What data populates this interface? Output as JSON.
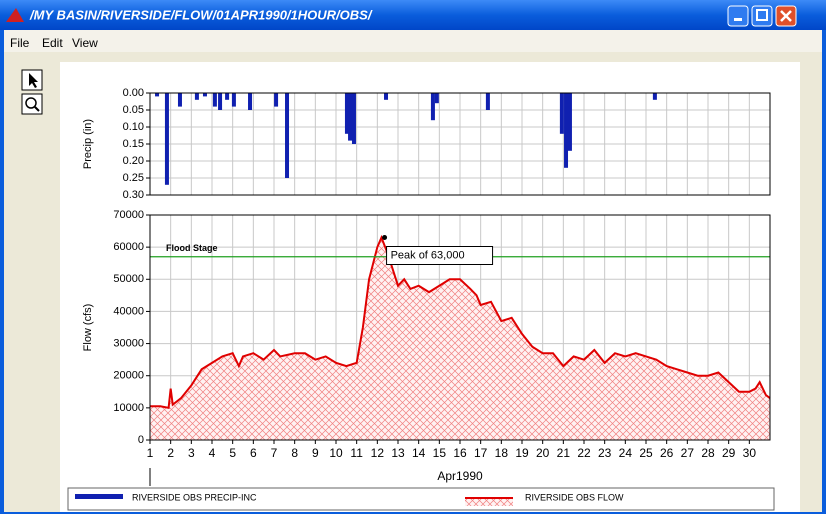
{
  "window": {
    "title": "/MY BASIN/RIVERSIDE/FLOW/01APR1990/1HOUR/OBS/"
  },
  "menu": [
    "File",
    "Edit",
    "View"
  ],
  "chart_data": [
    {
      "type": "bar",
      "ylabel": "Precip (in)",
      "x": [
        1.34,
        1.82,
        2.45,
        3.27,
        3.66,
        4.14,
        4.39,
        4.73,
        5.06,
        5.84,
        7.1,
        7.63,
        10.53,
        10.68,
        10.87,
        12.42,
        14.69,
        14.88,
        17.35,
        20.93,
        21.13,
        21.32,
        25.43
      ],
      "series": [
        {
          "name": "RIVERSIDE OBS PRECIP-INC",
          "color": "#1020b0",
          "values": [
            0.01,
            0.27,
            0.04,
            0.02,
            0.01,
            0.04,
            0.05,
            0.02,
            0.04,
            0.05,
            0.04,
            0.25,
            0.12,
            0.14,
            0.15,
            0.02,
            0.08,
            0.03,
            0.05,
            0.12,
            0.22,
            0.17,
            0.02
          ]
        }
      ],
      "xlim": [
        1,
        31
      ],
      "xticks": [
        1,
        2,
        3,
        4,
        5,
        6,
        7,
        8,
        9,
        10,
        11,
        12,
        13,
        14,
        15,
        16,
        17,
        18,
        19,
        20,
        21,
        22,
        23,
        24,
        25,
        26,
        27,
        28,
        29,
        30
      ],
      "ylim": [
        0,
        0.3
      ],
      "y_inverted": true,
      "yticks": [
        {
          "value": 0,
          "label": "0.00"
        },
        {
          "value": 0.05,
          "label": "0.05"
        },
        {
          "value": 0.1,
          "label": "0.10"
        },
        {
          "value": 0.15,
          "label": "0.15"
        },
        {
          "value": 0.2,
          "label": "0.20"
        },
        {
          "value": 0.25,
          "label": "0.25"
        },
        {
          "value": 0.3,
          "label": "0.30"
        }
      ],
      "grid": true
    },
    {
      "type": "area",
      "xlabel": "Apr1990",
      "ylabel": "Flow (cfs)",
      "x": [
        1,
        1.5,
        1.9,
        2.0,
        2.1,
        2.5,
        3,
        3.5,
        4,
        4.5,
        5,
        5.3,
        5.5,
        6,
        6.5,
        7,
        7.3,
        8,
        8.5,
        9,
        9.5,
        10,
        10.5,
        11,
        11.3,
        11.6,
        12,
        12.2,
        12.5,
        12.8,
        13,
        13.3,
        13.6,
        14,
        14.5,
        15,
        15.5,
        16,
        16.5,
        16.8,
        17,
        17.5,
        18,
        18.5,
        19,
        19.5,
        20,
        20.5,
        21,
        21.5,
        22,
        22.5,
        23,
        23.5,
        24,
        24.5,
        25,
        25.5,
        26,
        26.5,
        27,
        27.5,
        28,
        28.5,
        29,
        29.5,
        30,
        30.3,
        30.5,
        30.8,
        31
      ],
      "series": [
        {
          "name": "RIVERSIDE OBS FLOW",
          "color": "#e00000",
          "values": [
            10500,
            10500,
            10000,
            16000,
            11000,
            13000,
            17000,
            22000,
            24000,
            26000,
            27000,
            23000,
            26000,
            27000,
            25000,
            28000,
            26000,
            27000,
            27000,
            25000,
            26000,
            24000,
            23000,
            24000,
            35000,
            50000,
            60000,
            63000,
            58000,
            52000,
            48000,
            50000,
            47000,
            48000,
            46000,
            48000,
            50000,
            50000,
            47000,
            45000,
            42000,
            43000,
            37000,
            38000,
            33000,
            29000,
            27000,
            27000,
            23000,
            26000,
            25000,
            28000,
            24000,
            27000,
            26000,
            27000,
            26000,
            25000,
            23000,
            22000,
            21000,
            20000,
            20000,
            21000,
            18000,
            15000,
            15000,
            16000,
            18000,
            14000,
            13000
          ]
        }
      ],
      "xlim": [
        1,
        31
      ],
      "xticks": [
        1,
        2,
        3,
        4,
        5,
        6,
        7,
        8,
        9,
        10,
        11,
        12,
        13,
        14,
        15,
        16,
        17,
        18,
        19,
        20,
        21,
        22,
        23,
        24,
        25,
        26,
        27,
        28,
        29,
        30
      ],
      "ylim": [
        0,
        70000
      ],
      "yticks": [
        0,
        10000,
        20000,
        30000,
        40000,
        50000,
        60000,
        70000
      ],
      "grid": true,
      "annotations": [
        {
          "text": "Flood Stage",
          "value": 57000,
          "color": "#20a020"
        },
        {
          "text": "Peak of 63,000",
          "x": 12.35,
          "y": 63000
        }
      ]
    }
  ]
}
